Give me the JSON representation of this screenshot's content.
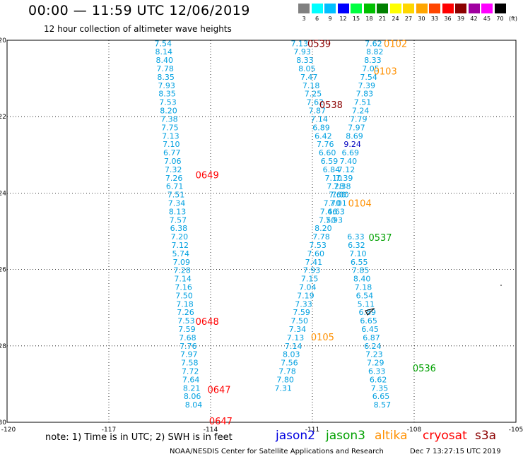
{
  "title": "00:00 — 11:59 UTC 12/06/2019",
  "subtitle": "12 hour collection of altimeter wave heights",
  "legend": {
    "unit": "(ft)",
    "bins": [
      {
        "label": "3",
        "color": "#808080"
      },
      {
        "label": "6",
        "color": "#00ffff"
      },
      {
        "label": "9",
        "color": "#00bfff"
      },
      {
        "label": "12",
        "color": "#0000ff"
      },
      {
        "label": "15",
        "color": "#00ff40"
      },
      {
        "label": "18",
        "color": "#00c000"
      },
      {
        "label": "21",
        "color": "#008000"
      },
      {
        "label": "24",
        "color": "#ffff00"
      },
      {
        "label": "27",
        "color": "#ffd700"
      },
      {
        "label": "30",
        "color": "#ffa500"
      },
      {
        "label": "33",
        "color": "#ff4500"
      },
      {
        "label": "36",
        "color": "#ff0000"
      },
      {
        "label": "39",
        "color": "#8b0000"
      },
      {
        "label": "42",
        "color": "#a000a0"
      },
      {
        "label": "45",
        "color": "#ff00ff"
      },
      {
        "label": "70",
        "color": "#000000"
      }
    ]
  },
  "map": {
    "lon_range": [
      -120,
      -105
    ],
    "lat_range": [
      -30,
      -20
    ],
    "x_ticks": [
      -117,
      -114,
      -111,
      -108
    ],
    "y_ticks": [
      -22,
      -24,
      -26,
      -28
    ],
    "corner_labels": {
      "bottom_left": "-120",
      "bottom_right": "-105",
      "top_left": "-20",
      "bottom_left_lat": "-30"
    },
    "grid": "dotted"
  },
  "tracks": [
    {
      "satellite": "cryosat",
      "color": "#00a0e0",
      "points": [
        {
          "lon": -115.4,
          "lat": -20.08,
          "swh": "7.54"
        },
        {
          "lon": -115.38,
          "lat": -20.3,
          "swh": "8.14"
        },
        {
          "lon": -115.36,
          "lat": -20.52,
          "swh": "8.40"
        },
        {
          "lon": -115.34,
          "lat": -20.74,
          "swh": "7.78"
        },
        {
          "lon": -115.32,
          "lat": -20.96,
          "swh": "8.35"
        },
        {
          "lon": -115.3,
          "lat": -21.18,
          "swh": "7.93"
        },
        {
          "lon": -115.28,
          "lat": -21.4,
          "swh": "8.35"
        },
        {
          "lon": -115.26,
          "lat": -21.62,
          "swh": "7.53"
        },
        {
          "lon": -115.24,
          "lat": -21.84,
          "swh": "8.20"
        },
        {
          "lon": -115.22,
          "lat": -22.06,
          "swh": "7.38"
        },
        {
          "lon": -115.2,
          "lat": -22.28,
          "swh": "7.75"
        },
        {
          "lon": -115.18,
          "lat": -22.5,
          "swh": "7.13"
        },
        {
          "lon": -115.16,
          "lat": -22.72,
          "swh": "7.10"
        },
        {
          "lon": -115.14,
          "lat": -22.94,
          "swh": "6.77"
        },
        {
          "lon": -115.12,
          "lat": -23.16,
          "swh": "7.06"
        },
        {
          "lon": -115.1,
          "lat": -23.38,
          "swh": "7.32"
        },
        {
          "lon": -115.08,
          "lat": -23.6,
          "swh": "7.26"
        },
        {
          "lon": -115.06,
          "lat": -23.82,
          "swh": "6.71"
        },
        {
          "lon": -115.02,
          "lat": -24.04,
          "swh": "7.51"
        },
        {
          "lon": -115.0,
          "lat": -24.26,
          "swh": "7.34"
        },
        {
          "lon": -114.98,
          "lat": -24.48,
          "swh": "8.13"
        },
        {
          "lon": -114.96,
          "lat": -24.7,
          "swh": "7.57"
        },
        {
          "lon": -114.94,
          "lat": -24.92,
          "swh": "6.38"
        },
        {
          "lon": -114.92,
          "lat": -25.14,
          "swh": "7.20"
        },
        {
          "lon": -114.9,
          "lat": -25.36,
          "swh": "7.12"
        },
        {
          "lon": -114.88,
          "lat": -25.58,
          "swh": "5.74"
        },
        {
          "lon": -114.86,
          "lat": -25.8,
          "swh": "7.09"
        },
        {
          "lon": -114.84,
          "lat": -26.02,
          "swh": "7.28"
        },
        {
          "lon": -114.82,
          "lat": -26.24,
          "swh": "7.14"
        },
        {
          "lon": -114.8,
          "lat": -26.46,
          "swh": "7.16"
        },
        {
          "lon": -114.78,
          "lat": -26.68,
          "swh": "7.50"
        },
        {
          "lon": -114.76,
          "lat": -26.9,
          "swh": "7.18"
        },
        {
          "lon": -114.74,
          "lat": -27.12,
          "swh": "7.26"
        },
        {
          "lon": -114.72,
          "lat": -27.34,
          "swh": "7.53"
        },
        {
          "lon": -114.7,
          "lat": -27.56,
          "swh": "7.59"
        },
        {
          "lon": -114.68,
          "lat": -27.78,
          "swh": "7.68"
        },
        {
          "lon": -114.66,
          "lat": -28.0,
          "swh": "7.76"
        },
        {
          "lon": -114.64,
          "lat": -28.22,
          "swh": "7.97"
        },
        {
          "lon": -114.62,
          "lat": -28.44,
          "swh": "7.58"
        },
        {
          "lon": -114.6,
          "lat": -28.66,
          "swh": "7.72"
        },
        {
          "lon": -114.58,
          "lat": -28.88,
          "swh": "7.64"
        },
        {
          "lon": -114.56,
          "lat": -29.1,
          "swh": "8.21"
        },
        {
          "lon": -114.54,
          "lat": -29.32,
          "swh": "8.06"
        },
        {
          "lon": -114.5,
          "lat": -29.54,
          "swh": "8.04"
        }
      ],
      "time_labels": [
        {
          "text": "0649",
          "lon": -114.1,
          "lat": -23.52
        },
        {
          "text": "0648",
          "lon": -114.1,
          "lat": -27.36
        },
        {
          "text": "0647",
          "lon": -113.75,
          "lat": -29.14
        },
        {
          "text": "0647",
          "lon": -113.7,
          "lat": -29.96
        }
      ]
    },
    {
      "satellite": "s3a",
      "color": "#00a0e0",
      "points": [
        {
          "lon": -111.38,
          "lat": -20.08,
          "swh": "7.13"
        },
        {
          "lon": -111.3,
          "lat": -20.3,
          "swh": "7.93"
        },
        {
          "lon": -111.22,
          "lat": -20.52,
          "swh": "8.33"
        },
        {
          "lon": -111.16,
          "lat": -20.74,
          "swh": "8.05"
        },
        {
          "lon": -111.1,
          "lat": -20.96,
          "swh": "7.47"
        },
        {
          "lon": -111.04,
          "lat": -21.18,
          "swh": "7.18"
        },
        {
          "lon": -110.98,
          "lat": -21.4,
          "swh": "7.25"
        },
        {
          "lon": -110.92,
          "lat": -21.62,
          "swh": "7.62"
        },
        {
          "lon": -110.86,
          "lat": -21.84,
          "swh": "7.87"
        },
        {
          "lon": -110.8,
          "lat": -22.06,
          "swh": "7.14"
        },
        {
          "lon": -110.74,
          "lat": -22.28,
          "swh": "6.89"
        },
        {
          "lon": -110.68,
          "lat": -22.5,
          "swh": "6.42"
        },
        {
          "lon": -110.62,
          "lat": -22.72,
          "swh": "7.76"
        },
        {
          "lon": -110.56,
          "lat": -22.94,
          "swh": "6.60"
        },
        {
          "lon": -110.5,
          "lat": -23.16,
          "swh": "6.59"
        },
        {
          "lon": -110.44,
          "lat": -23.38,
          "swh": "6.84"
        },
        {
          "lon": -110.38,
          "lat": -23.6,
          "swh": "7.10"
        },
        {
          "lon": -110.32,
          "lat": -23.82,
          "swh": "7.28"
        },
        {
          "lon": -110.26,
          "lat": -24.04,
          "swh": "7.60"
        },
        {
          "lon": -110.42,
          "lat": -24.26,
          "swh": "7.70"
        },
        {
          "lon": -110.52,
          "lat": -24.48,
          "swh": "7.46"
        },
        {
          "lon": -110.56,
          "lat": -24.7,
          "swh": "7.50"
        },
        {
          "lon": -110.68,
          "lat": -24.92,
          "swh": "8.20"
        },
        {
          "lon": -110.74,
          "lat": -25.14,
          "swh": "7.78"
        },
        {
          "lon": -110.84,
          "lat": -25.36,
          "swh": "7.53"
        },
        {
          "lon": -110.9,
          "lat": -25.58,
          "swh": "7.60"
        },
        {
          "lon": -110.96,
          "lat": -25.8,
          "swh": "7.41"
        },
        {
          "lon": -111.02,
          "lat": -26.02,
          "swh": "7.93"
        },
        {
          "lon": -111.08,
          "lat": -26.24,
          "swh": "7.15"
        },
        {
          "lon": -111.14,
          "lat": -26.46,
          "swh": "7.04"
        },
        {
          "lon": -111.2,
          "lat": -26.68,
          "swh": "7.19"
        },
        {
          "lon": -111.26,
          "lat": -26.9,
          "swh": "7.33"
        },
        {
          "lon": -111.32,
          "lat": -27.12,
          "swh": "7.59"
        },
        {
          "lon": -111.38,
          "lat": -27.34,
          "swh": "7.50"
        },
        {
          "lon": -111.44,
          "lat": -27.56,
          "swh": "7.34"
        },
        {
          "lon": -111.5,
          "lat": -27.78,
          "swh": "7.13"
        },
        {
          "lon": -111.56,
          "lat": -28.0,
          "swh": "7.14"
        },
        {
          "lon": -111.62,
          "lat": -28.22,
          "swh": "8.03"
        },
        {
          "lon": -111.68,
          "lat": -28.44,
          "swh": "7.56"
        },
        {
          "lon": -111.74,
          "lat": -28.66,
          "swh": "7.78"
        },
        {
          "lon": -111.8,
          "lat": -28.88,
          "swh": "7.80"
        },
        {
          "lon": -111.86,
          "lat": -29.1,
          "swh": "7.31"
        }
      ],
      "time_labels": [
        {
          "text": "0539",
          "lon": -110.8,
          "lat": -20.08
        },
        {
          "text": "0538",
          "lon": -110.45,
          "lat": -21.68
        }
      ]
    },
    {
      "satellite": "altika",
      "color": "#00a0e0",
      "points": [
        {
          "lon": -109.2,
          "lat": -20.08,
          "swh": "7.62"
        },
        {
          "lon": -109.16,
          "lat": -20.3,
          "swh": "8.82"
        },
        {
          "lon": -109.22,
          "lat": -20.52,
          "swh": "8.33"
        },
        {
          "lon": -109.28,
          "lat": -20.74,
          "swh": "7.05"
        },
        {
          "lon": -109.34,
          "lat": -20.96,
          "swh": "7.54"
        },
        {
          "lon": -109.4,
          "lat": -21.18,
          "swh": "7.39"
        },
        {
          "lon": -109.46,
          "lat": -21.4,
          "swh": "7.83"
        },
        {
          "lon": -109.52,
          "lat": -21.62,
          "swh": "7.51"
        },
        {
          "lon": -109.58,
          "lat": -21.84,
          "swh": "7.24"
        },
        {
          "lon": -109.64,
          "lat": -22.06,
          "swh": "7.79"
        },
        {
          "lon": -109.7,
          "lat": -22.28,
          "swh": "7.97"
        },
        {
          "lon": -109.76,
          "lat": -22.5,
          "swh": "8.69"
        },
        {
          "lon": -109.82,
          "lat": -22.72,
          "swh": "9.24"
        },
        {
          "lon": -109.88,
          "lat": -22.94,
          "swh": "6.69"
        },
        {
          "lon": -109.94,
          "lat": -23.16,
          "swh": "7.40"
        },
        {
          "lon": -110.0,
          "lat": -23.38,
          "swh": "7.12"
        },
        {
          "lon": -110.06,
          "lat": -23.6,
          "swh": "7.39"
        },
        {
          "lon": -110.12,
          "lat": -23.82,
          "swh": "7.38"
        },
        {
          "lon": -110.18,
          "lat": -24.04,
          "swh": "7.00"
        },
        {
          "lon": -110.24,
          "lat": -24.26,
          "swh": "7.01"
        },
        {
          "lon": -110.3,
          "lat": -24.48,
          "swh": "6.63"
        },
        {
          "lon": -110.36,
          "lat": -24.7,
          "swh": "7.93"
        }
      ],
      "time_labels": [
        {
          "text": "0102",
          "lon": -108.55,
          "lat": -20.08
        },
        {
          "text": "0103",
          "lon": -108.85,
          "lat": -20.8
        },
        {
          "text": "0104",
          "lon": -109.6,
          "lat": -24.26
        },
        {
          "text": "0105",
          "lon": -110.7,
          "lat": -27.76
        }
      ]
    },
    {
      "satellite": "jason3",
      "color": "#00a0e0",
      "points": [
        {
          "lon": -109.72,
          "lat": -25.14,
          "swh": "6.33"
        },
        {
          "lon": -109.7,
          "lat": -25.36,
          "swh": "6.32"
        },
        {
          "lon": -109.66,
          "lat": -25.58,
          "swh": "7.10"
        },
        {
          "lon": -109.62,
          "lat": -25.8,
          "swh": "6.55"
        },
        {
          "lon": -109.58,
          "lat": -26.02,
          "swh": "7.85"
        },
        {
          "lon": -109.54,
          "lat": -26.24,
          "swh": "8.40"
        },
        {
          "lon": -109.5,
          "lat": -26.46,
          "swh": "7.18"
        },
        {
          "lon": -109.46,
          "lat": -26.68,
          "swh": "6.54"
        },
        {
          "lon": -109.42,
          "lat": -26.9,
          "swh": "5.11"
        },
        {
          "lon": -109.38,
          "lat": -27.12,
          "swh": "6.89"
        },
        {
          "lon": -109.34,
          "lat": -27.34,
          "swh": "6.65"
        },
        {
          "lon": -109.3,
          "lat": -27.56,
          "swh": "6.45"
        },
        {
          "lon": -109.26,
          "lat": -27.78,
          "swh": "6.87"
        },
        {
          "lon": -109.22,
          "lat": -28.0,
          "swh": "6.24"
        },
        {
          "lon": -109.18,
          "lat": -28.22,
          "swh": "7.23"
        },
        {
          "lon": -109.14,
          "lat": -28.44,
          "swh": "7.29"
        },
        {
          "lon": -109.1,
          "lat": -28.66,
          "swh": "6.33"
        },
        {
          "lon": -109.06,
          "lat": -28.88,
          "swh": "6.62"
        },
        {
          "lon": -109.02,
          "lat": -29.1,
          "swh": "7.35"
        },
        {
          "lon": -108.98,
          "lat": -29.32,
          "swh": "6.65"
        },
        {
          "lon": -108.94,
          "lat": -29.54,
          "swh": "8.57"
        }
      ],
      "time_labels": [
        {
          "text": "0537",
          "lon": -109.0,
          "lat": -25.16
        },
        {
          "text": "0536",
          "lon": -107.7,
          "lat": -28.58
        }
      ]
    }
  ],
  "note": "note: 1) Time is in UTC; 2) SWH is in feet",
  "satellite_legend": [
    {
      "name": "jason2",
      "color": "#0000e0"
    },
    {
      "name": "jason3",
      "color": "#00a000"
    },
    {
      "name": "altika",
      "color": "#ff9000"
    },
    {
      "name": "cryosat",
      "color": "#ff0000"
    },
    {
      "name": "s3a",
      "color": "#8b0000"
    }
  ],
  "credit": "NOAA/NESDIS Center for Satellite Applications and Research",
  "timestamp": "Dec  7 13:27:15 UTC 2019"
}
